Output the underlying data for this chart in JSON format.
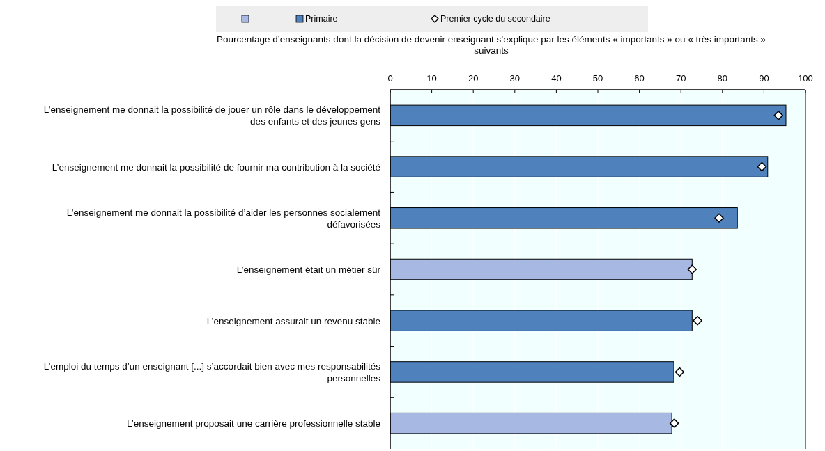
{
  "chart_data": {
    "type": "bar",
    "orientation": "horizontal",
    "xlabel": "Pourcentage d’enseignants dont la décision de devenir enseignant s’explique par les éléments « importants » ou « très importants » suivants",
    "categories": [
      "L’enseignement me donnait la possibilité de jouer un rôle dans le développement des enfants et des jeunes gens",
      "L’enseignement me donnait la possibilité de fournir ma contribution à la société",
      "L’enseignement me donnait la possibilité d’aider les personnes socialement défavorisées",
      "L’enseignement était un métier sûr",
      "L’enseignement assurait un revenu stable",
      "L’emploi du temps d’un enseignant [...] s’accordait bien avec mes responsabilités personnelles",
      "L’enseignement proposait une carrière professionnelle stable"
    ],
    "series": [
      {
        "name": "Primaire",
        "color": "#4f81bd",
        "colors": [
          "#4f81bd",
          "#4f81bd",
          "#4f81bd",
          "#a7b8e2",
          "#4f81bd",
          "#4f81bd",
          "#a7b8e2"
        ],
        "values": [
          95.3,
          90.9,
          83.6,
          72.7,
          72.7,
          68.3,
          67.8
        ]
      },
      {
        "name": "Premier cycle du secondaire",
        "type": "scatter",
        "color": "#ffffff",
        "marker": "diamond",
        "values": [
          93.5,
          89.5,
          79.2,
          72.7,
          74.0,
          69.7,
          68.4
        ]
      }
    ],
    "xlim": [
      0,
      100
    ],
    "xticks": [
      0,
      10,
      20,
      30,
      40,
      50,
      60,
      70,
      80,
      90,
      100
    ],
    "grid": "x",
    "legend": "top"
  }
}
